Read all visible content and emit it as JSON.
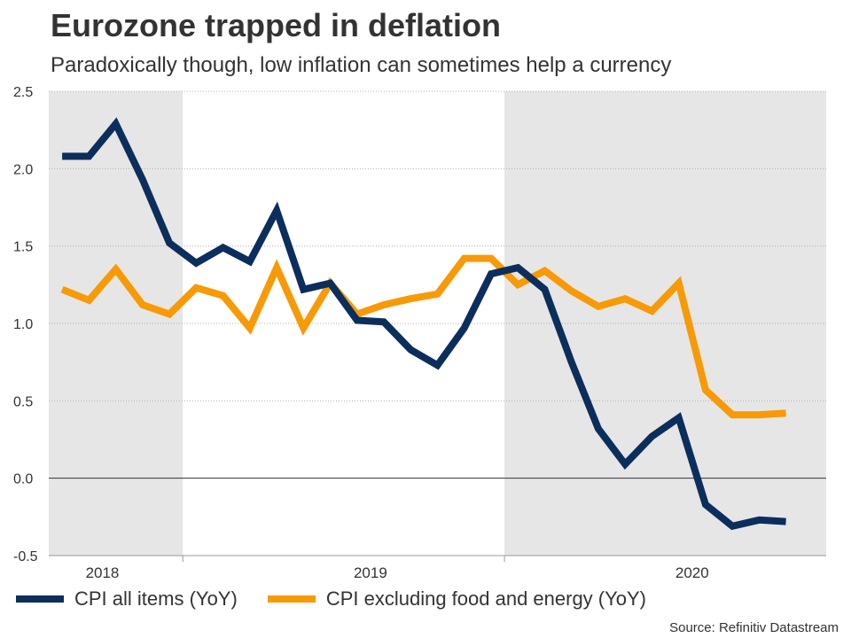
{
  "chart_data": {
    "type": "line",
    "title": "Eurozone trapped in deflation",
    "subtitle": "Paradoxically though, low inflation can sometimes help a currency",
    "source": "Source: Refinitiv Datastream",
    "ylim": [
      -0.5,
      2.5
    ],
    "yticks": [
      "2.5",
      "2.0",
      "1.5",
      "1.0",
      "0.5",
      "0.0",
      "-0.5"
    ],
    "ytick_values": [
      2.5,
      2.0,
      1.5,
      1.0,
      0.5,
      0.0,
      -0.5
    ],
    "year_labels": [
      {
        "label": "2018",
        "month_index": 1.5
      },
      {
        "label": "2019",
        "month_index": 11.5
      },
      {
        "label": "2020",
        "month_index": 23.5
      }
    ],
    "year_boundaries": [
      4.5,
      16.5
    ],
    "shaded_periods": [
      {
        "start": -0.5,
        "end": 4.5
      },
      {
        "start": 16.5,
        "end": 28.5
      }
    ],
    "x_range": [
      -0.5,
      28.5
    ],
    "grid": true,
    "series": [
      {
        "name": "CPI all items (YoY)",
        "color": "#0b2e5c",
        "values": [
          2.08,
          2.08,
          2.29,
          1.93,
          1.52,
          1.39,
          1.49,
          1.4,
          1.73,
          1.22,
          1.26,
          1.02,
          1.01,
          0.83,
          0.73,
          0.97,
          1.32,
          1.36,
          1.22,
          0.75,
          0.32,
          0.09,
          0.27,
          0.39,
          -0.17,
          -0.31,
          -0.27,
          -0.28
        ]
      },
      {
        "name": "CPI excluding food and energy (YoY)",
        "color": "#f79a06",
        "values": [
          1.22,
          1.15,
          1.35,
          1.12,
          1.06,
          1.23,
          1.18,
          0.97,
          1.36,
          0.97,
          1.26,
          1.06,
          1.12,
          1.16,
          1.19,
          1.42,
          1.42,
          1.25,
          1.34,
          1.21,
          1.11,
          1.16,
          1.08,
          1.26,
          0.57,
          0.41,
          0.41,
          0.42
        ]
      }
    ]
  }
}
